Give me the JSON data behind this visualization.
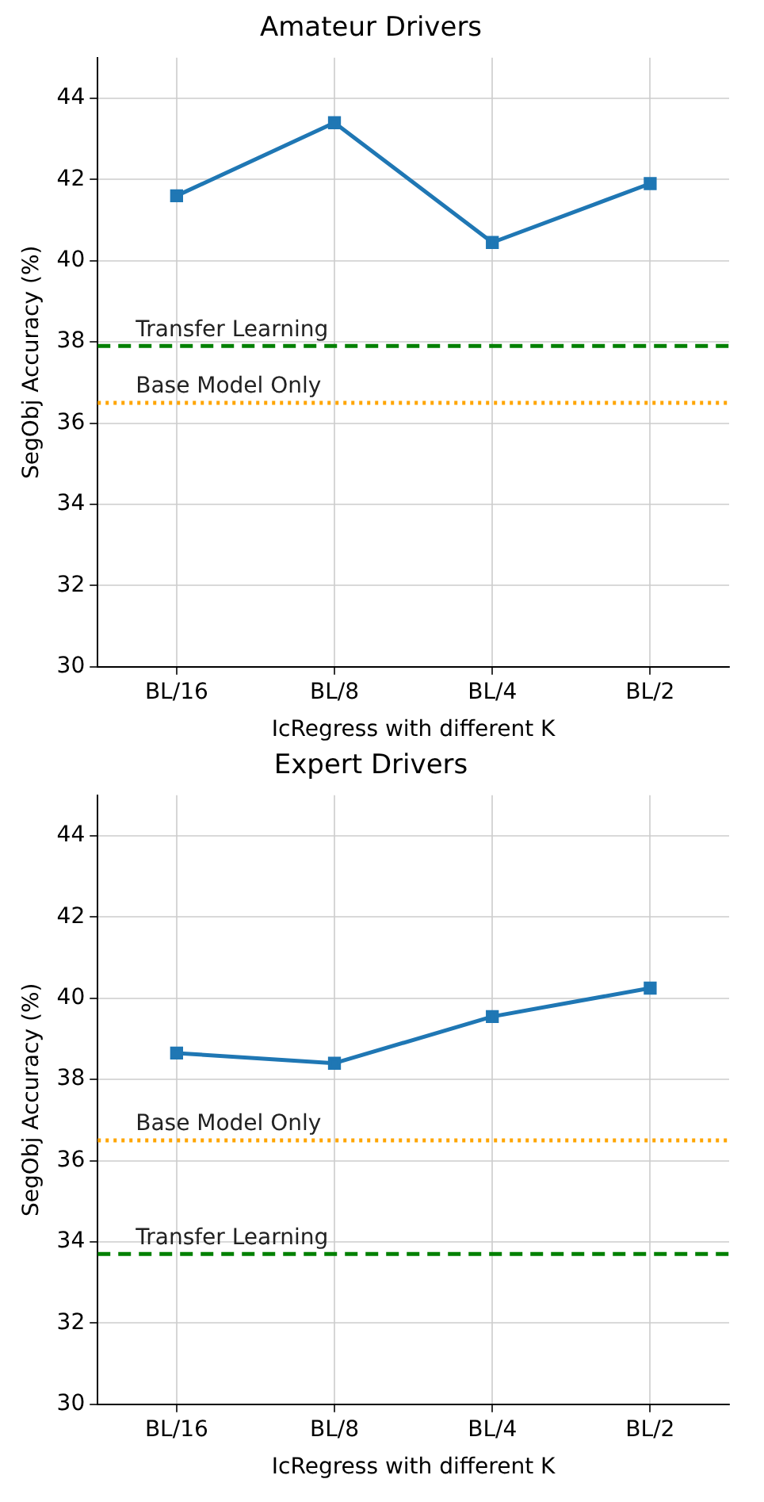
{
  "chart_data": [
    {
      "type": "line",
      "title": "Amateur Drivers",
      "xlabel": "IcRegress with different K",
      "ylabel": "SegObj Accuracy (%)",
      "categories": [
        "BL/16",
        "BL/8",
        "BL/4",
        "BL/2"
      ],
      "series": [
        {
          "color": "#1f77b4",
          "values": [
            41.6,
            43.4,
            40.45,
            41.9
          ]
        }
      ],
      "ylim": [
        30,
        45
      ],
      "yticks": [
        30,
        32,
        34,
        36,
        38,
        40,
        42,
        44
      ],
      "grid": true,
      "marker": "square",
      "line_style": "solid",
      "ref_lines": [
        {
          "axis": "y",
          "value": 37.9,
          "label": "Transfer Learning",
          "color": "#008000",
          "line_style": "dashed"
        },
        {
          "axis": "y",
          "value": 36.5,
          "label": "Base Model Only",
          "color": "#ffa500",
          "line_style": "dotted"
        }
      ]
    },
    {
      "type": "line",
      "title": "Expert Drivers",
      "xlabel": "IcRegress with different K",
      "ylabel": "SegObj Accuracy (%)",
      "categories": [
        "BL/16",
        "BL/8",
        "BL/4",
        "BL/2"
      ],
      "series": [
        {
          "color": "#1f77b4",
          "values": [
            38.65,
            38.4,
            39.55,
            40.25
          ]
        }
      ],
      "ylim": [
        30,
        45
      ],
      "yticks": [
        30,
        32,
        34,
        36,
        38,
        40,
        42,
        44
      ],
      "grid": true,
      "marker": "square",
      "line_style": "solid",
      "ref_lines": [
        {
          "axis": "y",
          "value": 36.5,
          "label": "Base Model Only",
          "color": "#ffa500",
          "line_style": "dotted"
        },
        {
          "axis": "y",
          "value": 33.7,
          "label": "Transfer Learning",
          "color": "#008000",
          "line_style": "dashed"
        }
      ]
    }
  ]
}
